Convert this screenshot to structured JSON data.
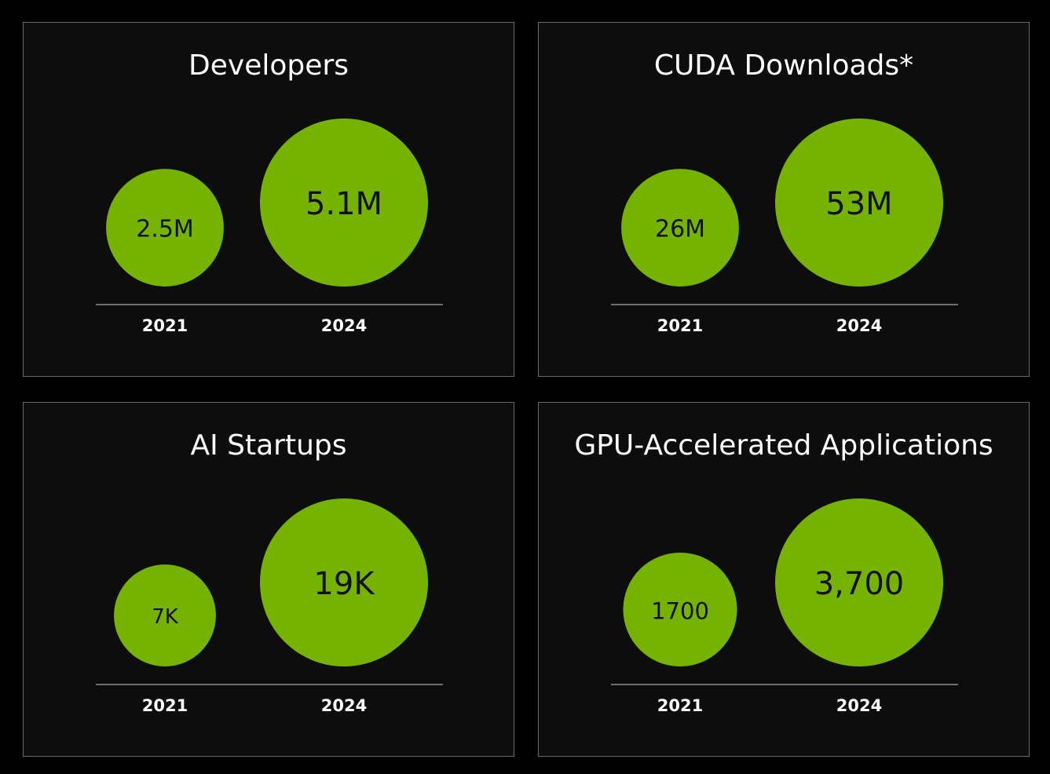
{
  "colors": {
    "background": "#000000",
    "panel": "#0d0d0d",
    "panel_border": "#6a6a6a",
    "bubble": "#76b300",
    "axis_line": "#6e6e6e",
    "text_light": "#ffffff",
    "text_dark": "#111111"
  },
  "chart_data": [
    {
      "type": "bubble",
      "title": "Developers",
      "categories": [
        "2021",
        "2024"
      ],
      "values": [
        2.5,
        5.1
      ],
      "unit": "M",
      "value_labels": [
        "2.5M",
        "5.1M"
      ]
    },
    {
      "type": "bubble",
      "title": "CUDA Downloads*",
      "categories": [
        "2021",
        "2024"
      ],
      "values": [
        26,
        53
      ],
      "unit": "M",
      "value_labels": [
        "26M",
        "53M"
      ]
    },
    {
      "type": "bubble",
      "title": "AI Startups",
      "categories": [
        "2021",
        "2024"
      ],
      "values": [
        7,
        19
      ],
      "unit": "K",
      "value_labels": [
        "7K",
        "19K"
      ]
    },
    {
      "type": "bubble",
      "title": "GPU-Accelerated Applications",
      "categories": [
        "2021",
        "2024"
      ],
      "values": [
        1700,
        3700
      ],
      "unit": "",
      "value_labels": [
        "1700",
        "3,700"
      ]
    }
  ]
}
